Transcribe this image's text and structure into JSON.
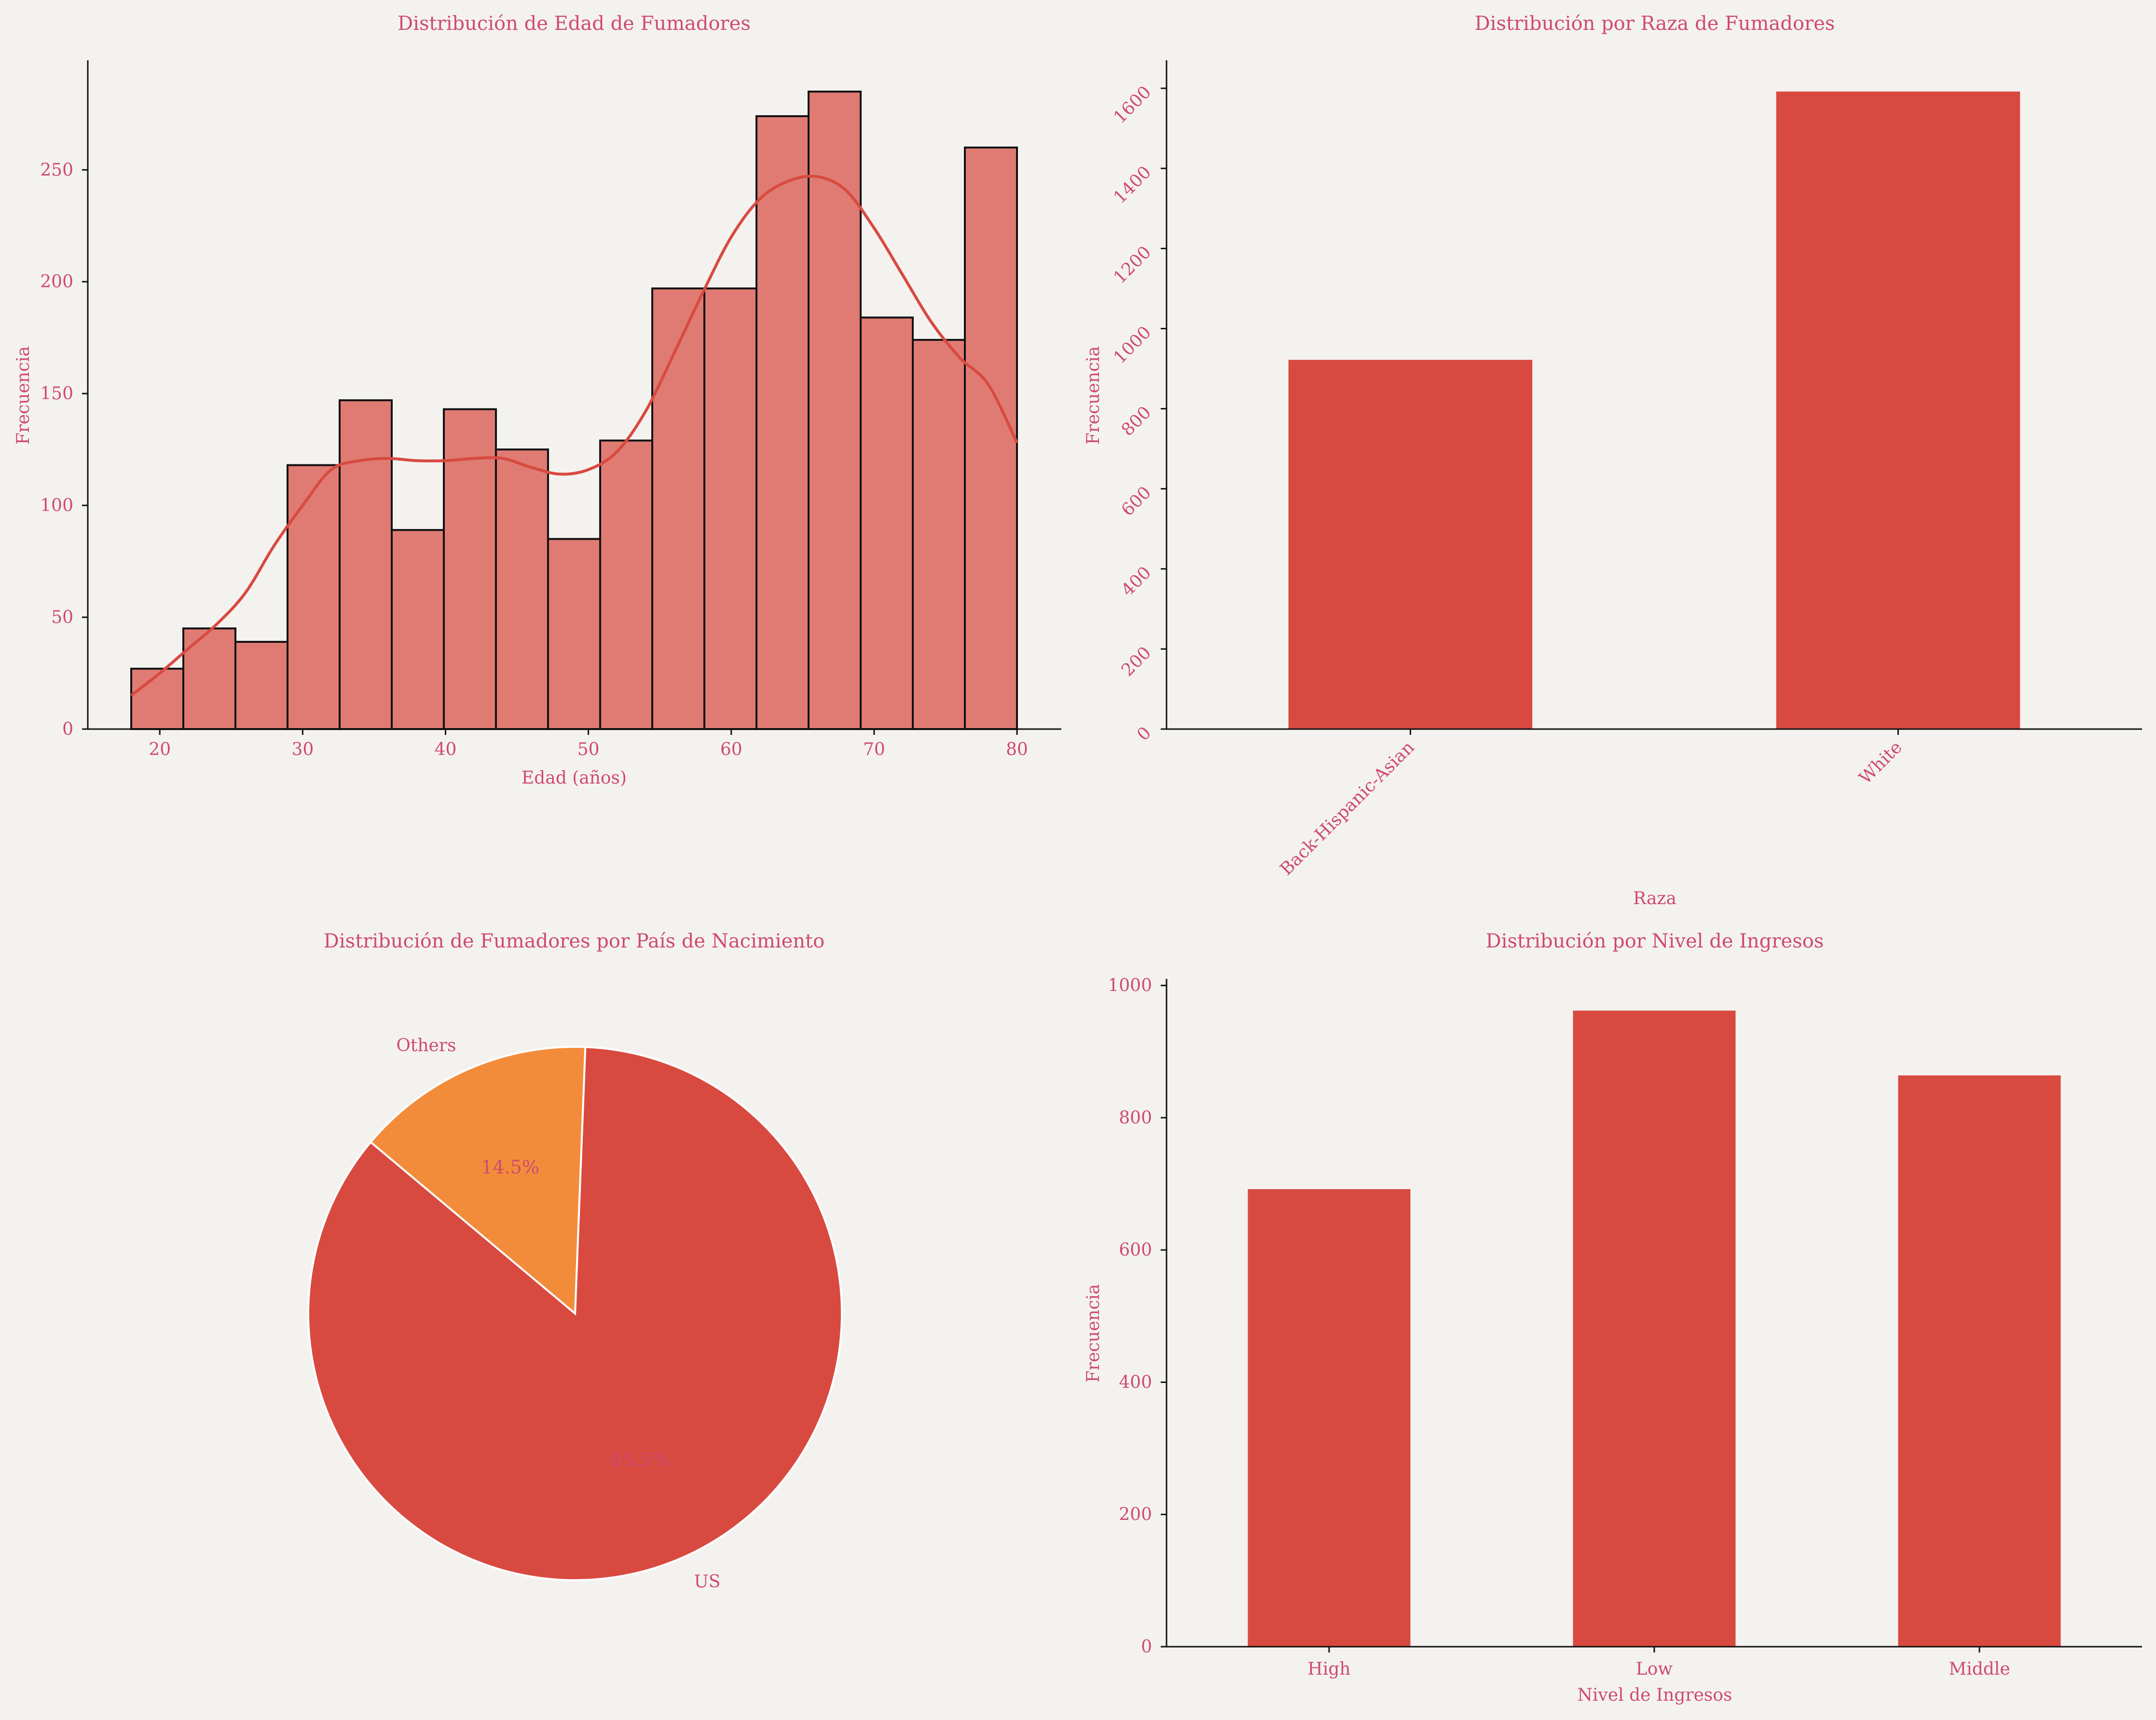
{
  "chart_data": [
    {
      "type": "bar",
      "subtype": "histogram",
      "title": "Distribución de Edad de Fumadores",
      "xlabel": "Edad (años)",
      "ylabel": "Frecuencia",
      "bin_edges": [
        18,
        21.647,
        25.294,
        28.941,
        32.588,
        36.235,
        39.882,
        43.529,
        47.176,
        50.824,
        54.471,
        58.118,
        61.765,
        65.412,
        69.059,
        72.706,
        76.353,
        80
      ],
      "values": [
        27,
        45,
        39,
        118,
        147,
        89,
        143,
        125,
        85,
        129,
        197,
        197,
        274,
        285,
        184,
        174,
        260
      ],
      "kde": {
        "x": [
          18,
          20,
          22,
          24,
          26,
          28,
          30,
          32,
          34,
          36,
          38,
          40,
          42,
          44,
          46,
          48,
          50,
          52,
          54,
          56,
          58,
          60,
          62,
          64,
          66,
          68,
          70,
          72,
          74,
          76,
          78,
          80
        ],
        "y": [
          15,
          25,
          36,
          47,
          61,
          82,
          100,
          116,
          120,
          121,
          120,
          120,
          121,
          121,
          117,
          114,
          116,
          124,
          142,
          168,
          195,
          220,
          237,
          245,
          247,
          241,
          224,
          203,
          182,
          166,
          154,
          128
        ]
      },
      "xticks": [
        20,
        30,
        40,
        50,
        60,
        70,
        80
      ],
      "yticks": [
        0,
        50,
        100,
        150,
        200,
        250
      ],
      "xlim": [
        15,
        83
      ],
      "ylim": [
        0,
        299
      ],
      "colors": {
        "bar": "#e07b73",
        "edge": "#111111",
        "kde": "#d84a40"
      }
    },
    {
      "type": "bar",
      "title": "Distribución por Raza de Fumadores",
      "xlabel": "Raza",
      "ylabel": "Frecuencia",
      "categories": [
        "Back-Hispanic-Asian",
        "White"
      ],
      "values": [
        922,
        1592
      ],
      "yticks": [
        0,
        200,
        400,
        600,
        800,
        1000,
        1200,
        1400,
        1600
      ],
      "ylim": [
        0,
        1670
      ],
      "tick_rotation": 45,
      "colors": {
        "bar": "#d84a40"
      }
    },
    {
      "type": "pie",
      "title": "Distribución de Fumadores por País de Nacimiento",
      "labels": [
        "US",
        "Others"
      ],
      "values": [
        85.5,
        14.5
      ],
      "pct_labels": [
        "85.5%",
        "14.5%"
      ],
      "start_angle_deg": 140,
      "colors": [
        "#d84a40",
        "#f38c3a"
      ]
    },
    {
      "type": "bar",
      "title": "Distribución por Nivel de Ingresos",
      "xlabel": "Nivel de Ingresos",
      "ylabel": "Frecuencia",
      "categories": [
        "High",
        "Low",
        "Middle"
      ],
      "values": [
        692,
        962,
        864
      ],
      "yticks": [
        0,
        200,
        400,
        600,
        800,
        1000
      ],
      "ylim": [
        0,
        1010
      ],
      "colors": {
        "bar": "#d84a40"
      }
    }
  ]
}
